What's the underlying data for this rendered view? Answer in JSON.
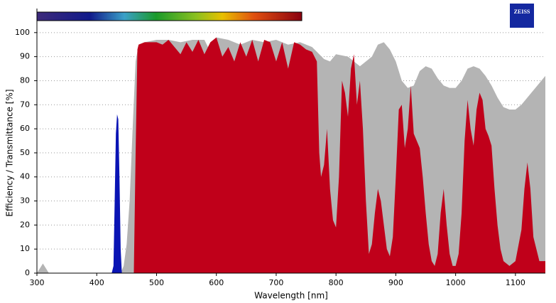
{
  "chart_data": {
    "type": "area",
    "logo": "ZEISS",
    "x_label": "Wavelength [nm]",
    "y_label": "Efficiency / Transmittance [%]",
    "xlim": [
      300,
      1150
    ],
    "ylim": [
      0,
      110
    ],
    "xticks": [
      300,
      400,
      500,
      600,
      700,
      800,
      900,
      1000,
      1100
    ],
    "yticks": [
      0,
      10,
      20,
      30,
      40,
      50,
      60,
      70,
      80,
      90,
      100
    ],
    "grid": true,
    "series": [
      {
        "color": "#b4b4b4",
        "x": [
          300,
          305,
          310,
          315,
          320,
          440,
          445,
          450,
          455,
          460,
          465,
          470,
          480,
          500,
          520,
          540,
          560,
          580,
          590,
          600,
          620,
          640,
          660,
          680,
          700,
          720,
          740,
          760,
          780,
          790,
          800,
          820,
          840,
          860,
          870,
          880,
          890,
          900,
          910,
          920,
          930,
          940,
          950,
          960,
          970,
          980,
          990,
          1000,
          1010,
          1020,
          1030,
          1040,
          1050,
          1060,
          1070,
          1080,
          1090,
          1100,
          1110,
          1120,
          1130,
          1140,
          1150
        ],
        "values": [
          0,
          2,
          4,
          2,
          0,
          0,
          3,
          12,
          30,
          60,
          88,
          95,
          96,
          97,
          97,
          96,
          97,
          97,
          92,
          98,
          97,
          95,
          97,
          96,
          97,
          95,
          96,
          94,
          89,
          88,
          91,
          90,
          86,
          90,
          95,
          96,
          93,
          88,
          80,
          77,
          78,
          84,
          86,
          85,
          81,
          78,
          77,
          77,
          80,
          85,
          86,
          85,
          82,
          78,
          73,
          69,
          68,
          68,
          70,
          73,
          76,
          79,
          82
        ]
      },
      {
        "color": "#c0001a",
        "x": [
          462,
          465,
          468,
          470,
          480,
          490,
          500,
          510,
          520,
          530,
          540,
          550,
          560,
          570,
          580,
          590,
          600,
          610,
          620,
          630,
          640,
          650,
          660,
          670,
          680,
          690,
          700,
          710,
          720,
          730,
          740,
          750,
          760,
          768,
          772,
          775,
          780,
          785,
          790,
          795,
          800,
          805,
          810,
          815,
          820,
          825,
          830,
          835,
          840,
          845,
          850,
          855,
          860,
          865,
          870,
          875,
          880,
          885,
          890,
          895,
          900,
          905,
          910,
          915,
          920,
          925,
          930,
          935,
          940,
          945,
          950,
          955,
          960,
          965,
          970,
          975,
          980,
          985,
          990,
          995,
          1000,
          1005,
          1010,
          1015,
          1020,
          1025,
          1030,
          1035,
          1040,
          1045,
          1050,
          1055,
          1060,
          1065,
          1070,
          1075,
          1080,
          1090,
          1100,
          1110,
          1115,
          1120,
          1125,
          1130,
          1140,
          1150
        ],
        "values": [
          0,
          50,
          93,
          95,
          96,
          96,
          96,
          95,
          97,
          94,
          91,
          96,
          92,
          97,
          91,
          96,
          98,
          90,
          94,
          88,
          96,
          90,
          97,
          88,
          97,
          96,
          88,
          96,
          85,
          96,
          95,
          93,
          92,
          88,
          50,
          40,
          45,
          60,
          35,
          22,
          19,
          40,
          80,
          75,
          65,
          85,
          91,
          70,
          80,
          60,
          30,
          8,
          12,
          25,
          35,
          30,
          20,
          10,
          7,
          15,
          40,
          68,
          70,
          52,
          60,
          78,
          58,
          55,
          52,
          40,
          25,
          12,
          5,
          3,
          8,
          25,
          35,
          20,
          8,
          3,
          3,
          8,
          25,
          55,
          72,
          60,
          53,
          68,
          75,
          72,
          60,
          57,
          53,
          35,
          20,
          10,
          5,
          3,
          5,
          18,
          35,
          46,
          35,
          15,
          5,
          5
        ]
      },
      {
        "color": "#0a14b4",
        "x": [
          425,
          428,
          430,
          432,
          434,
          436,
          438,
          440,
          442
        ],
        "values": [
          0,
          3,
          30,
          58,
          66,
          64,
          40,
          10,
          0
        ]
      }
    ]
  }
}
